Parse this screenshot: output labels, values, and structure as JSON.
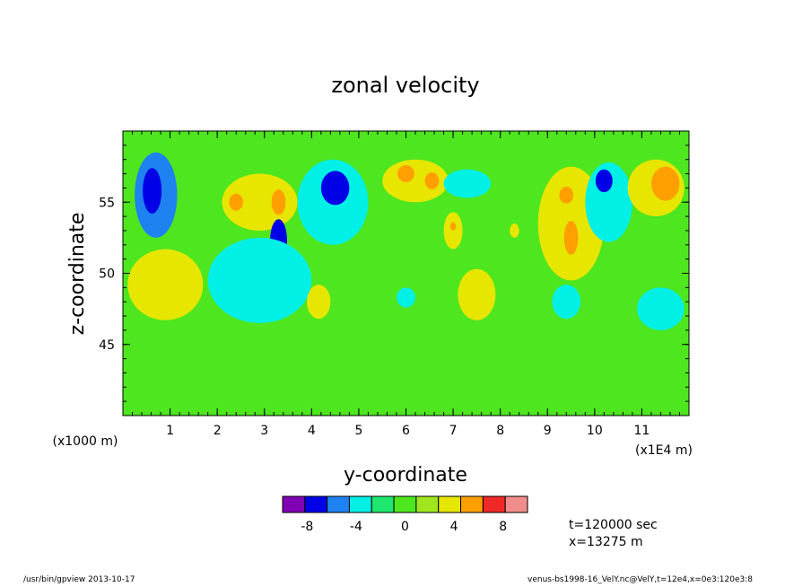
{
  "chart_data": {
    "type": "heatmap",
    "title": "zonal velocity",
    "xlabel": "y-coordinate",
    "ylabel": "z-coordinate",
    "x_scale_label": "(x1E4 m)",
    "y_scale_label": "(x1000 m)",
    "xlim": [
      0,
      12
    ],
    "ylim": [
      40,
      60
    ],
    "x_ticks": [
      "1",
      "2",
      "3",
      "4",
      "5",
      "6",
      "7",
      "8",
      "9",
      "10",
      "11"
    ],
    "y_ticks": [
      "45",
      "50",
      "55"
    ],
    "colorbar": {
      "levels": [
        -10,
        -8,
        -6,
        -4,
        -2,
        0,
        2,
        4,
        6,
        8,
        10
      ],
      "colors": [
        "#8000b4",
        "#0000e6",
        "#1e82f0",
        "#00f0e6",
        "#1ee66e",
        "#4ee61e",
        "#a0e61e",
        "#e6e600",
        "#ffa000",
        "#f02828",
        "#f08c8c"
      ],
      "tick_labels": [
        "-8",
        "-4",
        "0",
        "4",
        "8"
      ]
    },
    "features": [
      {
        "x": 0.7,
        "y": 55.5,
        "rx": 0.45,
        "ry": 3.0,
        "value": -5
      },
      {
        "x": 0.62,
        "y": 55.8,
        "rx": 0.2,
        "ry": 1.6,
        "value": -7
      },
      {
        "x": 2.9,
        "y": 55.0,
        "rx": 0.8,
        "ry": 2.0,
        "value": 4
      },
      {
        "x": 2.4,
        "y": 55.0,
        "rx": 0.15,
        "ry": 0.6,
        "value": 6
      },
      {
        "x": 3.3,
        "y": 55.0,
        "rx": 0.15,
        "ry": 0.9,
        "value": 6
      },
      {
        "x": 3.3,
        "y": 52.3,
        "rx": 0.18,
        "ry": 1.5,
        "value": -7
      },
      {
        "x": 2.9,
        "y": 49.5,
        "rx": 1.1,
        "ry": 3.0,
        "value": -4
      },
      {
        "x": 0.9,
        "y": 49.2,
        "rx": 0.8,
        "ry": 2.5,
        "value": 4
      },
      {
        "x": 4.45,
        "y": 55.0,
        "rx": 0.75,
        "ry": 3.0,
        "value": -4
      },
      {
        "x": 4.5,
        "y": 56.0,
        "rx": 0.3,
        "ry": 1.2,
        "value": -7
      },
      {
        "x": 4.15,
        "y": 48.0,
        "rx": 0.25,
        "ry": 1.2,
        "value": 4
      },
      {
        "x": 6.2,
        "y": 56.5,
        "rx": 0.7,
        "ry": 1.5,
        "value": 4
      },
      {
        "x": 6.0,
        "y": 57.0,
        "rx": 0.18,
        "ry": 0.6,
        "value": 6
      },
      {
        "x": 6.55,
        "y": 56.5,
        "rx": 0.15,
        "ry": 0.6,
        "value": 6
      },
      {
        "x": 7.3,
        "y": 56.3,
        "rx": 0.5,
        "ry": 1.0,
        "value": -4
      },
      {
        "x": 7.0,
        "y": 53.0,
        "rx": 0.2,
        "ry": 1.3,
        "value": 4
      },
      {
        "x": 7.0,
        "y": 53.3,
        "rx": 0.06,
        "ry": 0.3,
        "value": 6
      },
      {
        "x": 6.0,
        "y": 48.3,
        "rx": 0.2,
        "ry": 0.7,
        "value": -4
      },
      {
        "x": 7.5,
        "y": 48.5,
        "rx": 0.4,
        "ry": 1.8,
        "value": 4
      },
      {
        "x": 9.5,
        "y": 53.5,
        "rx": 0.7,
        "ry": 4.0,
        "value": 4
      },
      {
        "x": 9.4,
        "y": 55.5,
        "rx": 0.15,
        "ry": 0.6,
        "value": 6
      },
      {
        "x": 9.5,
        "y": 52.5,
        "rx": 0.15,
        "ry": 1.2,
        "value": 6
      },
      {
        "x": 10.3,
        "y": 55.0,
        "rx": 0.5,
        "ry": 2.8,
        "value": -4
      },
      {
        "x": 10.2,
        "y": 56.5,
        "rx": 0.18,
        "ry": 0.8,
        "value": -7
      },
      {
        "x": 11.3,
        "y": 56.0,
        "rx": 0.6,
        "ry": 2.0,
        "value": 4
      },
      {
        "x": 11.5,
        "y": 56.3,
        "rx": 0.3,
        "ry": 1.2,
        "value": 6
      },
      {
        "x": 11.4,
        "y": 47.5,
        "rx": 0.5,
        "ry": 1.5,
        "value": -4
      },
      {
        "x": 9.4,
        "y": 48.0,
        "rx": 0.3,
        "ry": 1.2,
        "value": -4
      },
      {
        "x": 8.3,
        "y": 53.0,
        "rx": 0.1,
        "ry": 0.5,
        "value": 4
      }
    ]
  },
  "info": {
    "time": "t=120000 sec",
    "position": "x=13275 m"
  },
  "footer": {
    "left": "/usr/bin/gpview   2013-10-17",
    "right": "venus-bs1998-16_VelY.nc@VelY,t=12e4,x=0e3:120e3:8"
  }
}
